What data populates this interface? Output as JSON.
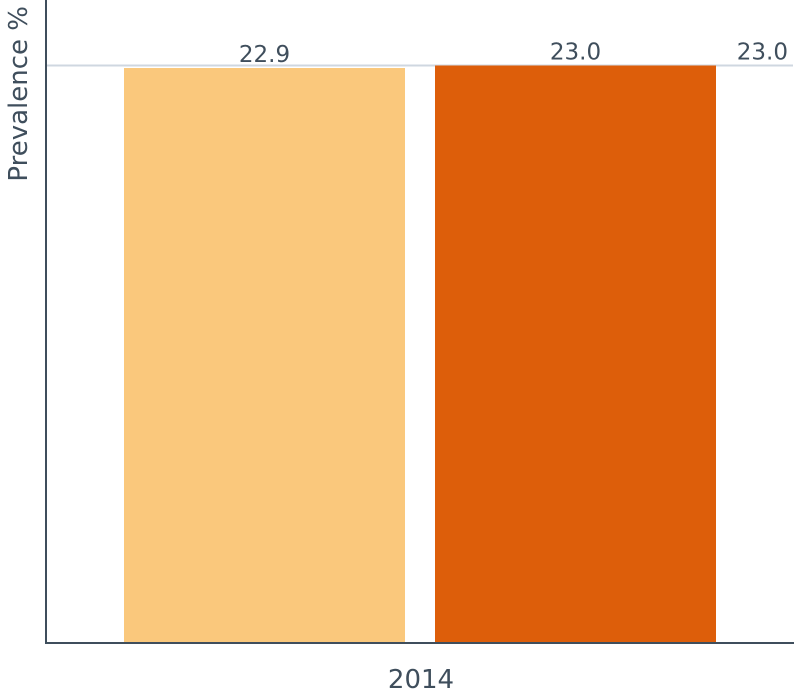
{
  "chart_data": {
    "type": "bar",
    "categories": [
      "2014"
    ],
    "series": [
      {
        "values": [
          22.9
        ],
        "color": "#fac87c"
      },
      {
        "values": [
          23.0
        ],
        "color": "#dd5e0a"
      }
    ],
    "data_labels": [
      "22.9",
      "23.0"
    ],
    "reference_line": {
      "value": 23.0,
      "label": "23.0",
      "color": "#cfd7e0"
    },
    "ylabel": "Prevalence %",
    "xlabel": "",
    "ylim": [
      0,
      23.1
    ],
    "grid": false,
    "axis_color": "#3f4e5c"
  }
}
